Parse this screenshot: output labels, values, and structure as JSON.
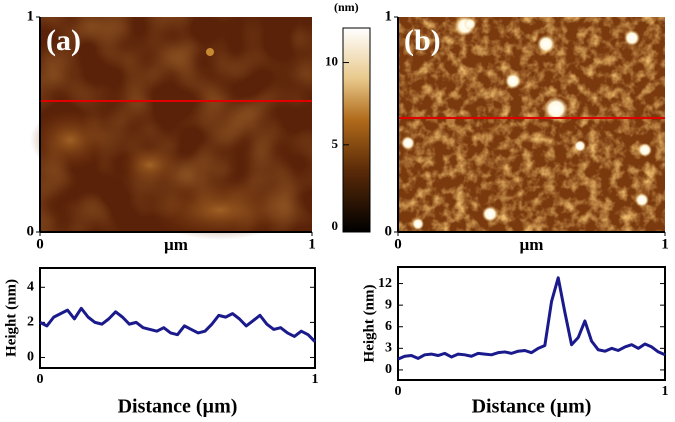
{
  "panels": [
    {
      "label": "(a)",
      "unit": "µm",
      "xticks": [
        0,
        1
      ],
      "yticks": [
        0,
        1
      ]
    },
    {
      "label": "(b)",
      "unit": "µm",
      "xticks": [
        0,
        1
      ],
      "yticks": [
        0,
        1
      ]
    }
  ],
  "colorbar": {
    "unit": "(nm)",
    "lim": [
      -0.3,
      12.1
    ],
    "ticks": [
      0,
      5,
      10
    ]
  },
  "chart_data": [
    {
      "type": "line",
      "xlabel": "Distance (µm)",
      "ylabel": "Height (nm)",
      "x": [
        0,
        0.025,
        0.05,
        0.075,
        0.1,
        0.125,
        0.15,
        0.175,
        0.2,
        0.225,
        0.25,
        0.275,
        0.3,
        0.325,
        0.35,
        0.375,
        0.4,
        0.425,
        0.45,
        0.475,
        0.5,
        0.525,
        0.55,
        0.575,
        0.6,
        0.625,
        0.65,
        0.675,
        0.7,
        0.725,
        0.75,
        0.775,
        0.8,
        0.825,
        0.85,
        0.875,
        0.9,
        0.925,
        0.95,
        0.975,
        1
      ],
      "series": [
        {
          "color": "#1a1a8c",
          "values": [
            2.0,
            1.8,
            2.3,
            2.5,
            2.7,
            2.2,
            2.8,
            2.3,
            2.0,
            1.9,
            2.2,
            2.6,
            2.3,
            1.9,
            2.0,
            1.7,
            1.6,
            1.5,
            1.7,
            1.4,
            1.3,
            1.8,
            1.6,
            1.4,
            1.5,
            1.9,
            2.4,
            2.3,
            2.5,
            2.2,
            1.8,
            2.1,
            2.4,
            1.9,
            1.6,
            1.7,
            1.4,
            1.2,
            1.5,
            1.3,
            0.9
          ]
        }
      ],
      "xlim": [
        0,
        1
      ],
      "xticks": [
        0,
        1
      ],
      "ylim": [
        -0.6,
        5.1
      ],
      "yticks": [
        0,
        2,
        4
      ]
    },
    {
      "type": "line",
      "xlabel": "Distance (µm)",
      "ylabel": "Height (nm)",
      "x": [
        0,
        0.025,
        0.05,
        0.075,
        0.1,
        0.125,
        0.15,
        0.175,
        0.2,
        0.225,
        0.25,
        0.275,
        0.3,
        0.325,
        0.35,
        0.375,
        0.4,
        0.425,
        0.45,
        0.475,
        0.5,
        0.525,
        0.55,
        0.575,
        0.6,
        0.625,
        0.65,
        0.675,
        0.7,
        0.725,
        0.75,
        0.775,
        0.8,
        0.825,
        0.85,
        0.875,
        0.9,
        0.925,
        0.95,
        0.975,
        1
      ],
      "series": [
        {
          "color": "#1a1a8c",
          "values": [
            1.5,
            1.9,
            2.0,
            1.6,
            2.1,
            2.2,
            2.0,
            2.3,
            1.8,
            2.2,
            2.1,
            1.9,
            2.3,
            2.2,
            2.1,
            2.4,
            2.5,
            2.3,
            2.6,
            2.7,
            2.4,
            3.0,
            3.4,
            9.5,
            12.8,
            8.0,
            3.5,
            4.5,
            6.8,
            4.0,
            2.8,
            2.6,
            3.0,
            2.7,
            3.2,
            3.5,
            3.0,
            3.6,
            3.2,
            2.5,
            2.1
          ]
        }
      ],
      "xlim": [
        0,
        1
      ],
      "xticks": [
        0,
        1
      ],
      "ylim": [
        -1.4,
        14.3
      ],
      "yticks": [
        0,
        3,
        6,
        9,
        12
      ]
    }
  ]
}
